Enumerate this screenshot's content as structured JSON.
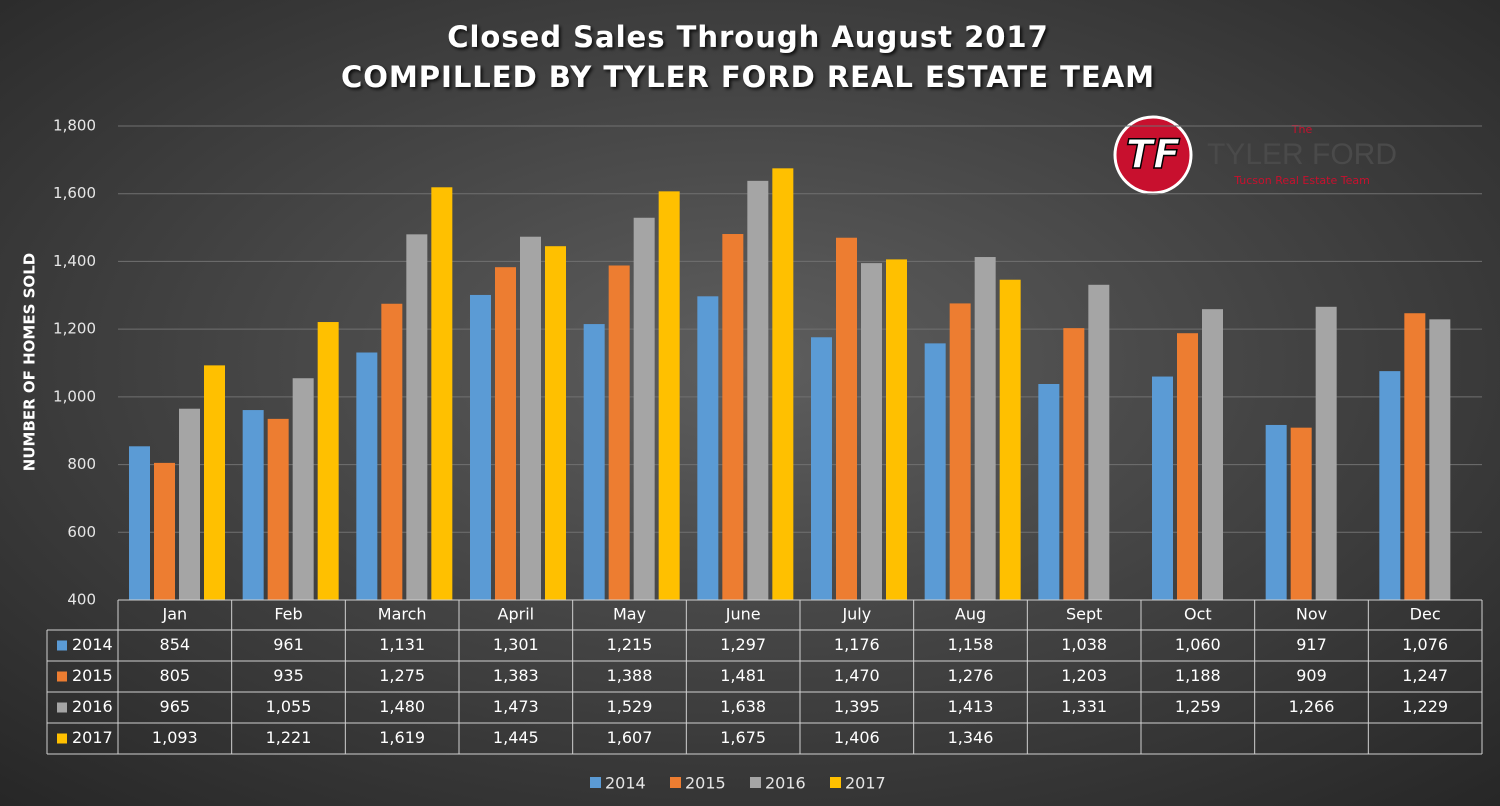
{
  "chart_data": {
    "type": "bar",
    "title": "Closed Sales Through August 2017",
    "subtitle": "COMPILLED BY TYLER FORD REAL ESTATE TEAM",
    "y_label": "NUMBER OF HOMES SOLD",
    "logo": {
      "mark": "TF",
      "top": "The",
      "name": "TYLER FORD",
      "tagline": "Tucson Real Estate Team"
    },
    "categories": [
      "Jan",
      "Feb",
      "March",
      "April",
      "May",
      "June",
      "July",
      "Aug",
      "Sept",
      "Oct",
      "Nov",
      "Dec"
    ],
    "series": [
      {
        "name": "2014",
        "color": "#5b9bd5",
        "values": [
          854,
          961,
          1131,
          1301,
          1215,
          1297,
          1176,
          1158,
          1038,
          1060,
          917,
          1076
        ],
        "value_labels": [
          "854",
          "961",
          "1,131",
          "1,301",
          "1,215",
          "1,297",
          "1,176",
          "1,158",
          "1,038",
          "1,060",
          "917",
          "1,076"
        ]
      },
      {
        "name": "2015",
        "color": "#ed7d31",
        "values": [
          805,
          935,
          1275,
          1383,
          1388,
          1481,
          1470,
          1276,
          1203,
          1188,
          909,
          1247
        ],
        "value_labels": [
          "805",
          "935",
          "1,275",
          "1,383",
          "1,388",
          "1,481",
          "1,470",
          "1,276",
          "1,203",
          "1,188",
          "909",
          "1,247"
        ]
      },
      {
        "name": "2016",
        "color": "#a5a5a5",
        "values": [
          965,
          1055,
          1480,
          1473,
          1529,
          1638,
          1395,
          1413,
          1331,
          1259,
          1266,
          1229
        ],
        "value_labels": [
          "965",
          "1,055",
          "1,480",
          "1,473",
          "1,529",
          "1,638",
          "1,395",
          "1,413",
          "1,331",
          "1,259",
          "1,266",
          "1,229"
        ]
      },
      {
        "name": "2017",
        "color": "#ffc000",
        "values": [
          1093,
          1221,
          1619,
          1445,
          1607,
          1675,
          1406,
          1346,
          null,
          null,
          null,
          null
        ],
        "value_labels": [
          "1,093",
          "1,221",
          "1,619",
          "1,445",
          "1,607",
          "1,675",
          "1,406",
          "1,346",
          null,
          null,
          null,
          null
        ]
      }
    ],
    "ylim": [
      400,
      1800
    ],
    "yticks": [
      400,
      600,
      800,
      {
        "value": 1000,
        "label": "1,000"
      },
      {
        "value": 1200,
        "label": "1,200"
      },
      {
        "value": 1400,
        "label": "1,400"
      },
      {
        "value": 1600,
        "label": "1,600"
      },
      {
        "value": 1800,
        "label": "1,800"
      }
    ],
    "grid": true
  }
}
